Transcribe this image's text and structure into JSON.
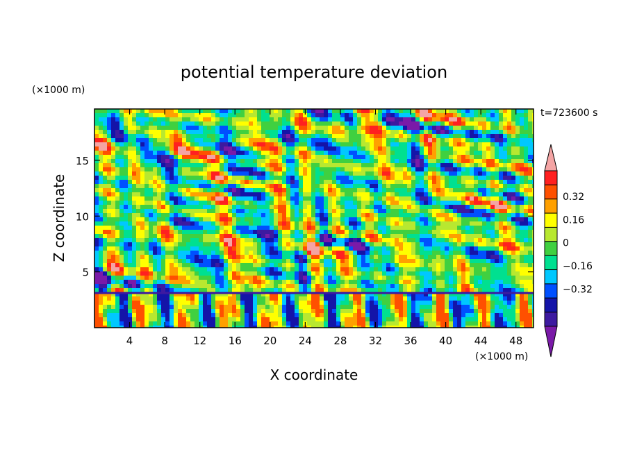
{
  "chart_data": {
    "type": "heatmap",
    "title": "potential temperature deviation",
    "xlabel": "X coordinate",
    "ylabel": "Z coordinate",
    "x_unit": "(×1000 m)",
    "y_unit": "(×1000 m)",
    "time_label": "t=723600 s",
    "xlim": [
      0,
      50
    ],
    "ylim": [
      0,
      19.6
    ],
    "x_ticks": [
      4,
      8,
      12,
      16,
      20,
      24,
      28,
      32,
      36,
      40,
      44,
      48
    ],
    "y_ticks": [
      5,
      10,
      15
    ],
    "colorbar": {
      "levels": [
        -0.48,
        -0.4,
        -0.32,
        -0.24,
        -0.16,
        -0.08,
        0,
        0.08,
        0.16,
        0.24,
        0.32,
        0.4
      ],
      "labeled_levels": [
        0.32,
        0.16,
        0,
        -0.16,
        -0.32
      ],
      "colors": [
        "#7a1aa8",
        "#3d1aa0",
        "#1414a8",
        "#0050ff",
        "#00c8ff",
        "#00e090",
        "#40d040",
        "#b8e830",
        "#ffff00",
        "#ffa000",
        "#ff5000",
        "#ff2020",
        "#f4a4a4"
      ],
      "extend": "both"
    },
    "inversion_height": 3.1,
    "note_layers": "boundary layer below ~3.1 (x1000 m) with vertical plume structure; turbulent banded field above"
  }
}
